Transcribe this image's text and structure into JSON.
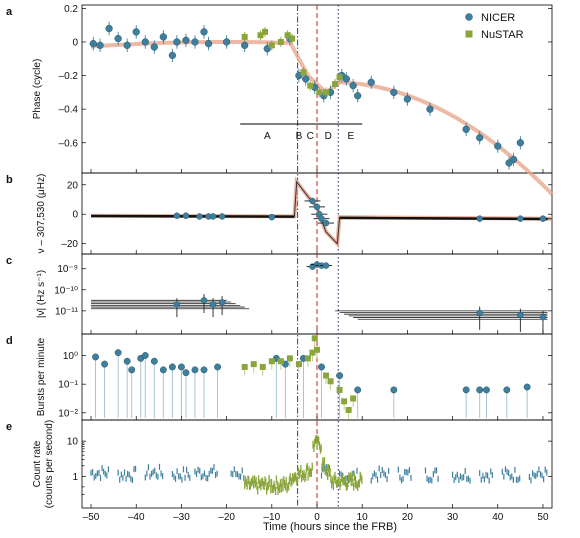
{
  "colors": {
    "nicer": "#3f7f9e",
    "nustar": "#8aa63b",
    "model": "#e8a78d",
    "line_frb": "#d9312b",
    "line_dashdot": "#4a4fa3",
    "line_dotted": "#2b2f7a"
  },
  "chart_data": {
    "type": "scatter",
    "x_label": "Time (hours since the FRB)",
    "x_ticks": [
      -50,
      -40,
      -30,
      -20,
      -10,
      0,
      10,
      20,
      30,
      40,
      50
    ],
    "xlim": [
      -52,
      52
    ],
    "legend": [
      {
        "name": "NICER",
        "color": "#3f7f9e",
        "marker": "circle"
      },
      {
        "name": "NuSTAR",
        "color": "#8aa63b",
        "marker": "square"
      }
    ],
    "vertical_lines": [
      {
        "x": -4.3,
        "style": "dashdot",
        "color": "#4a4fa3"
      },
      {
        "x": 0.0,
        "style": "dashed",
        "color": "#d9312b"
      },
      {
        "x": 4.7,
        "style": "dotted",
        "color": "#2b2f7a"
      }
    ],
    "panels": [
      {
        "letter": "a",
        "ylabel": "Phase (cycle)",
        "ylim": [
          -0.78,
          0.22
        ],
        "yticks": [
          0.2,
          0,
          -0.2,
          -0.4,
          -0.6
        ],
        "ytick_labels": [
          "0.2",
          "0",
          "–0.2",
          "–0.4",
          "–0.6"
        ],
        "nicer": [
          [
            -49.5,
            -0.01
          ],
          [
            -48,
            -0.02
          ],
          [
            -46,
            0.08
          ],
          [
            -44,
            0.02
          ],
          [
            -42,
            -0.02
          ],
          [
            -40,
            0.06
          ],
          [
            -38,
            0.0
          ],
          [
            -36,
            -0.03
          ],
          [
            -34,
            0.03
          ],
          [
            -32,
            -0.08
          ],
          [
            -31,
            0.0
          ],
          [
            -29,
            0.01
          ],
          [
            -27,
            0.0
          ],
          [
            -25,
            0.06
          ],
          [
            -24,
            -0.01
          ],
          [
            -20,
            0.0
          ],
          [
            -16,
            -0.02
          ],
          [
            -11,
            -0.04
          ],
          [
            -6,
            0.02
          ],
          [
            -4,
            -0.2
          ],
          [
            -2.5,
            -0.22
          ],
          [
            -0.5,
            -0.27
          ],
          [
            1.5,
            -0.32
          ],
          [
            3,
            -0.3
          ],
          [
            5.5,
            -0.2
          ],
          [
            6.5,
            -0.22
          ],
          [
            8,
            -0.26
          ],
          [
            9,
            -0.32
          ],
          [
            12,
            -0.24
          ],
          [
            17,
            -0.3
          ],
          [
            20,
            -0.34
          ],
          [
            25,
            -0.4
          ],
          [
            33,
            -0.52
          ],
          [
            36,
            -0.57
          ],
          [
            40,
            -0.62
          ],
          [
            42.5,
            -0.72
          ],
          [
            43.5,
            -0.7
          ],
          [
            45,
            -0.6
          ]
        ],
        "nustar": [
          [
            -16,
            0.03
          ],
          [
            -12.5,
            0.04
          ],
          [
            -11.5,
            0.06
          ],
          [
            -10,
            -0.02
          ],
          [
            -8,
            0.0
          ],
          [
            -6.5,
            0.04
          ],
          [
            -5.5,
            0.02
          ],
          [
            -3,
            -0.18
          ],
          [
            -1.5,
            -0.26
          ],
          [
            0.5,
            -0.3
          ],
          [
            2,
            -0.3
          ],
          [
            4,
            -0.25
          ],
          [
            5,
            -0.21
          ]
        ],
        "segments": [
          {
            "label": "A",
            "x_from": -17,
            "x_to": -5
          },
          {
            "label": "B",
            "x_from": -5,
            "x_to": -3
          },
          {
            "label": "C",
            "x_from": -3,
            "x_to": 0
          },
          {
            "label": "D",
            "x_from": 0,
            "x_to": 5
          },
          {
            "label": "E",
            "x_from": 5,
            "x_to": 10
          }
        ]
      },
      {
        "letter": "b",
        "ylabel": "ν – 307,530 (μHz)",
        "ylim": [
          -27,
          28
        ],
        "yticks": [
          20,
          0,
          -20
        ],
        "ytick_labels": [
          "20",
          "0",
          "–20"
        ],
        "nicer": [
          [
            -31,
            -1
          ],
          [
            -29,
            -1
          ],
          [
            -26,
            -1.5
          ],
          [
            -24,
            -1.5
          ],
          [
            -23,
            -1.5
          ],
          [
            -21,
            -1.5
          ],
          [
            -10,
            -2
          ],
          [
            36,
            -3
          ],
          [
            45,
            -3
          ],
          [
            50,
            -3
          ]
        ],
        "frb_window": [
          [
            -1,
            9
          ],
          [
            0,
            5
          ],
          [
            0.5,
            0
          ],
          [
            1,
            -3
          ],
          [
            2,
            -6
          ]
        ]
      },
      {
        "letter": "c",
        "ylabel": "|ν̇| (Hz s⁻¹)",
        "ytick_labels": [
          "10⁻⁹",
          "10⁻¹⁰",
          "10⁻¹¹"
        ],
        "log_ticks": [
          -9,
          -10,
          -11
        ],
        "log_range": [
          -12.1,
          -8.3
        ],
        "left_points": [
          [
            -31,
            -10.7
          ],
          [
            -25,
            -10.5
          ],
          [
            -23,
            -10.7
          ],
          [
            -21,
            -10.6
          ]
        ],
        "right_points": [
          [
            36,
            -11.1
          ],
          [
            45,
            -11.2
          ],
          [
            50,
            -11.3
          ]
        ],
        "frb_window": [
          [
            -1,
            -8.9
          ],
          [
            0,
            -8.8
          ],
          [
            1,
            -8.85
          ],
          [
            2,
            -8.85
          ]
        ]
      },
      {
        "letter": "d",
        "ylabel": "Bursts per minute",
        "ytick_labels": [
          "10⁰",
          "10⁻¹",
          "10⁻²"
        ],
        "log_ticks": [
          0,
          -1,
          -2
        ],
        "log_range": [
          -2.25,
          0.75
        ],
        "nicer": [
          [
            -49,
            -0.05
          ],
          [
            -47,
            -0.3
          ],
          [
            -44,
            0.1
          ],
          [
            -42,
            -0.2
          ],
          [
            -41,
            -0.5
          ],
          [
            -39,
            -0.1
          ],
          [
            -38,
            0.0
          ],
          [
            -36,
            -0.2
          ],
          [
            -34,
            -0.5
          ],
          [
            -32,
            -0.4
          ],
          [
            -30,
            -0.4
          ],
          [
            -29,
            -0.6
          ],
          [
            -27,
            -0.5
          ],
          [
            -25,
            -0.5
          ],
          [
            -22,
            -0.4
          ],
          [
            -9,
            -0.1
          ],
          [
            -7,
            -0.3
          ],
          [
            -3,
            -0.1
          ],
          [
            1,
            -0.4
          ],
          [
            5,
            -0.7
          ],
          [
            9,
            -1.2
          ],
          [
            17,
            -1.2
          ],
          [
            33,
            -1.2
          ],
          [
            36,
            -1.2
          ],
          [
            37.5,
            -1.2
          ],
          [
            42,
            -1.2
          ],
          [
            46.5,
            -1.1
          ]
        ],
        "nustar": [
          [
            -16,
            -0.4
          ],
          [
            -14,
            -0.3
          ],
          [
            -12,
            -0.4
          ],
          [
            -10,
            -0.2
          ],
          [
            -8,
            -0.2
          ],
          [
            -6,
            -0.1
          ],
          [
            -4,
            -0.3
          ],
          [
            -2,
            -0.1
          ],
          [
            -1,
            0.1
          ],
          [
            -0.5,
            0.6
          ],
          [
            0,
            0.2
          ],
          [
            2,
            -0.7
          ],
          [
            3,
            -0.9
          ],
          [
            5,
            -1.2
          ],
          [
            6,
            -1.6
          ],
          [
            7,
            -1.9
          ],
          [
            8,
            -1.5
          ]
        ]
      },
      {
        "letter": "e",
        "ylabel": "Count rate",
        "ylabel2": "(counts per second)",
        "ytick_labels": [
          "10",
          "1"
        ],
        "log_ticks": [
          1,
          0
        ],
        "log_range": [
          -0.9,
          1.6
        ]
      }
    ]
  }
}
